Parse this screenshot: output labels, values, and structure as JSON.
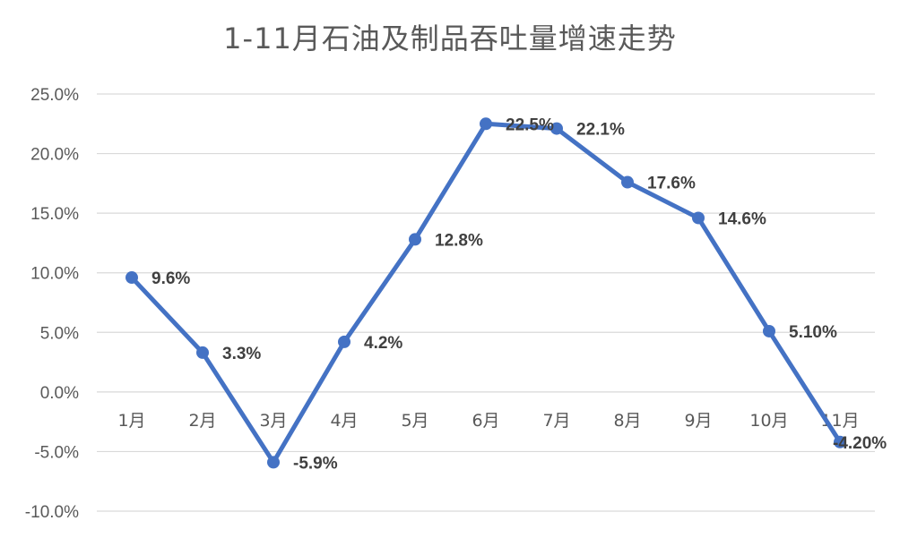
{
  "chart_data": {
    "type": "line",
    "title": "1-11月石油及制品吞吐量增速走势",
    "categories": [
      "1月",
      "2月",
      "3月",
      "4月",
      "5月",
      "6月",
      "7月",
      "8月",
      "9月",
      "10月",
      "11月"
    ],
    "series": [
      {
        "values": [
          9.6,
          3.3,
          -5.9,
          4.2,
          12.8,
          22.5,
          22.1,
          17.6,
          14.6,
          5.1,
          -4.2
        ],
        "labels": [
          "9.6%",
          "3.3%",
          "-5.9%",
          "4.2%",
          "12.8%",
          "22.5%",
          "22.1%",
          "17.6%",
          "14.6%",
          "5.10%",
          "-4.20%"
        ]
      }
    ],
    "yticks": [
      "25.0%",
      "20.0%",
      "15.0%",
      "10.0%",
      "5.0%",
      "0.0%",
      "-5.0%",
      "-10.0%"
    ],
    "ylim": [
      -10,
      25
    ],
    "grid": true,
    "colors": {
      "line": "#4472c4",
      "grid": "#d9d9d9"
    }
  }
}
